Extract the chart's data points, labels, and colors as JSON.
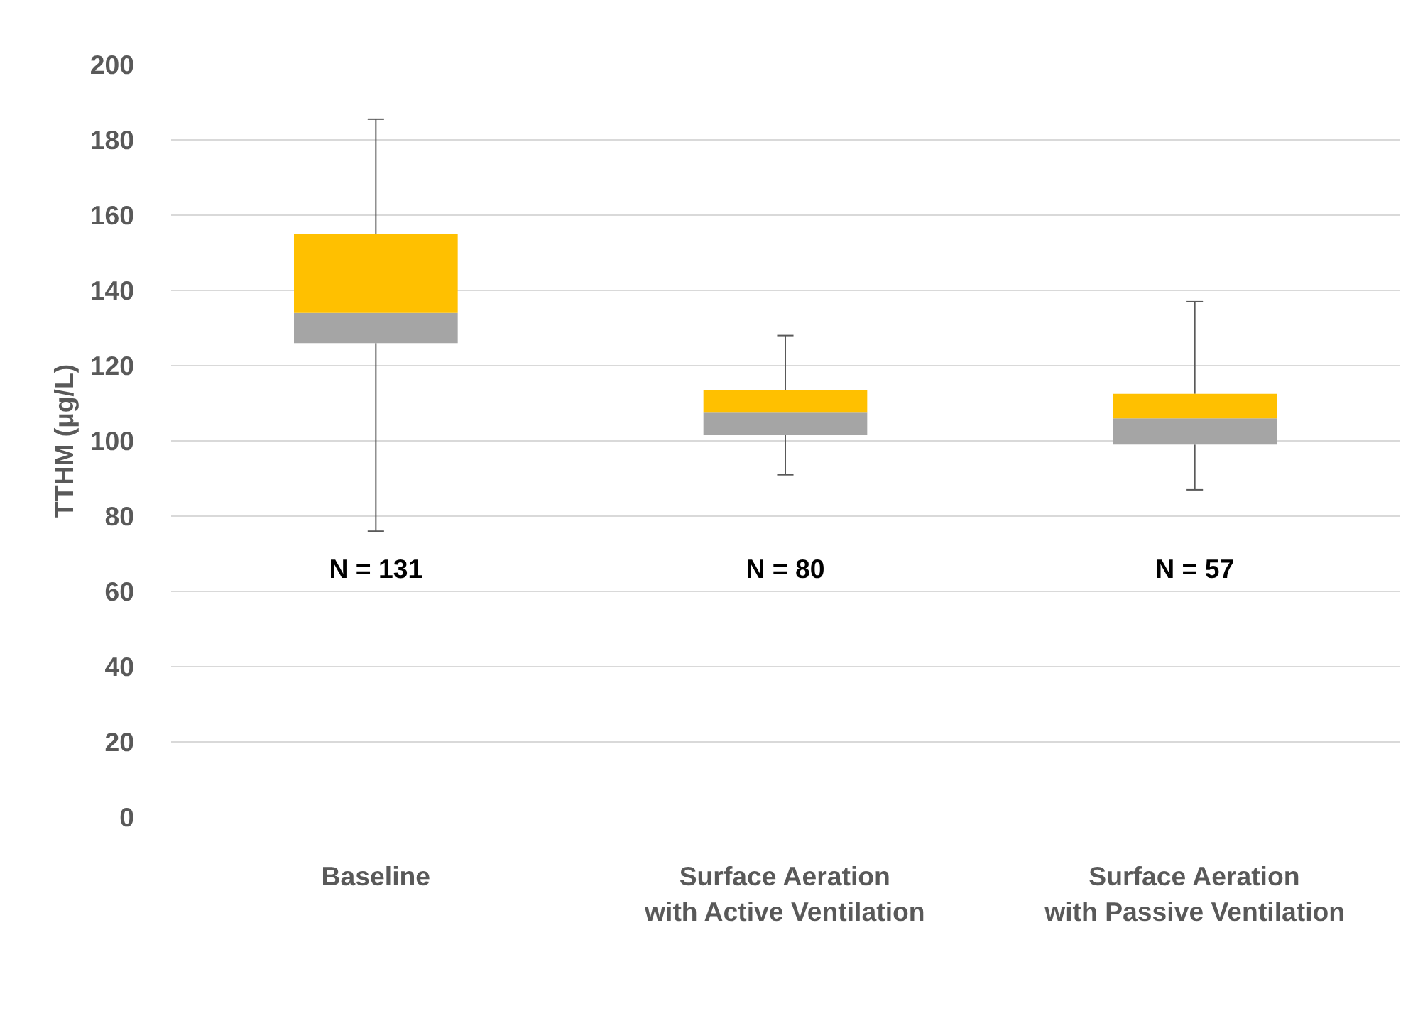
{
  "chart_data": {
    "type": "box",
    "categories": [
      "Baseline",
      "Surface Aeration\nwith Active Ventilation",
      "Surface Aeration\nwith Passive Ventilation"
    ],
    "series": [
      {
        "colors": [
          [
            "#a5a5a5",
            "#ffc000"
          ],
          [
            "#a5a5a5",
            "#ffc000"
          ],
          [
            "#a5a5a5",
            "#ffc000"
          ]
        ],
        "boxes": [
          {
            "low": 76,
            "q1": 126,
            "median": 134,
            "q3": 155,
            "high": 185.5
          },
          {
            "low": 91,
            "q1": 101.5,
            "median": 107.5,
            "q3": 113.5,
            "high": 128
          },
          {
            "low": 87,
            "q1": 99,
            "median": 106,
            "q3": 112.5,
            "high": 137
          }
        ]
      }
    ],
    "ylabel": "TTHM (µg/L)",
    "ylim": [
      0,
      200
    ],
    "yticks": [
      0,
      20,
      40,
      60,
      80,
      100,
      120,
      140,
      160,
      180,
      200
    ],
    "grid": "y",
    "annotations": [
      "N = 131",
      "N = 80",
      "N = 57"
    ]
  }
}
